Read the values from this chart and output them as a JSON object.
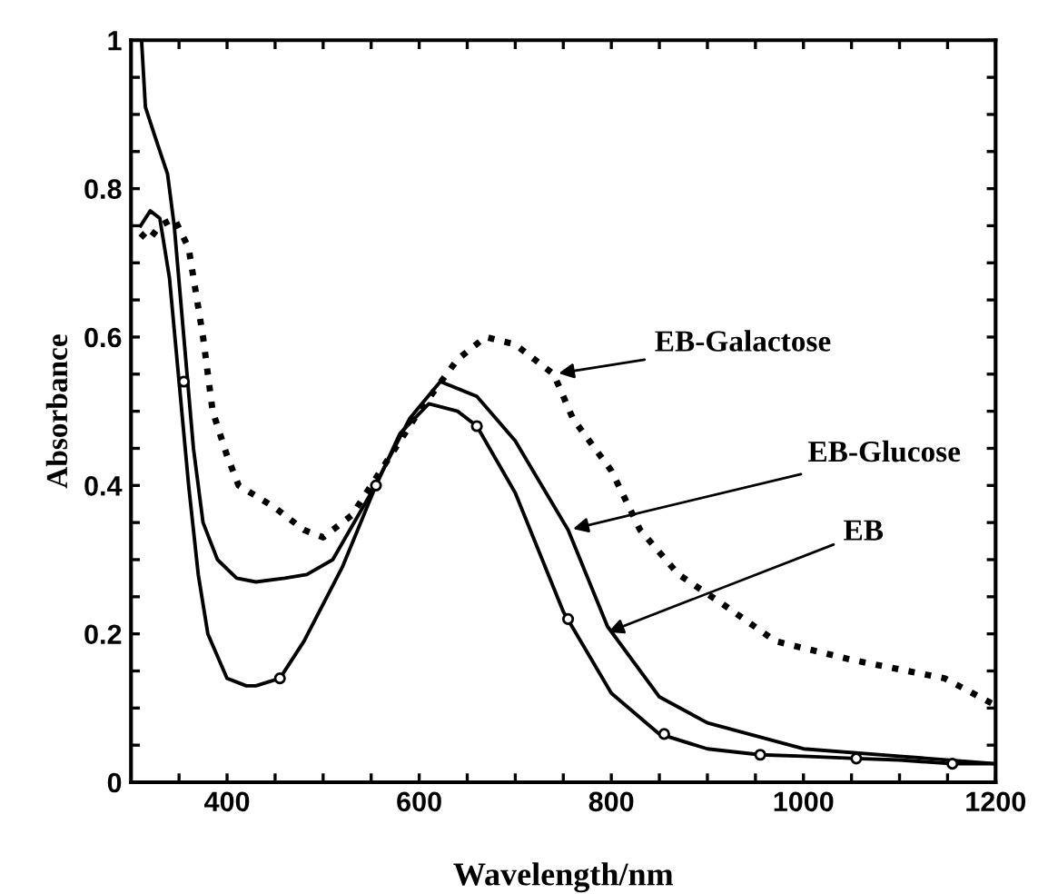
{
  "chart_data": {
    "type": "line",
    "xlabel": "Wavelength/nm",
    "ylabel": "Absorbance",
    "xlim": [
      300,
      1200
    ],
    "ylim": [
      0,
      1
    ],
    "xticks": [
      {
        "value": 350,
        "label": null
      },
      400,
      {
        "value": 450,
        "label": null
      },
      {
        "value": 500,
        "label": null
      },
      {
        "value": 550,
        "label": null
      },
      600,
      {
        "value": 650,
        "label": null
      },
      {
        "value": 700,
        "label": null
      },
      {
        "value": 750,
        "label": null
      },
      800,
      {
        "value": 850,
        "label": null
      },
      {
        "value": 900,
        "label": null
      },
      {
        "value": 950,
        "label": null
      },
      1000,
      {
        "value": 1050,
        "label": null
      },
      {
        "value": 1100,
        "label": null
      },
      {
        "value": 1150,
        "label": null
      },
      1200
    ],
    "yticks": [
      0,
      {
        "value": 0.05,
        "label": null
      },
      {
        "value": 0.1,
        "label": null
      },
      {
        "value": 0.15,
        "label": null
      },
      0.2,
      {
        "value": 0.25,
        "label": null
      },
      {
        "value": 0.3,
        "label": null
      },
      {
        "value": 0.35,
        "label": null
      },
      0.4,
      {
        "value": 0.45,
        "label": null
      },
      {
        "value": 0.5,
        "label": null
      },
      {
        "value": 0.55,
        "label": null
      },
      0.6,
      {
        "value": 0.65,
        "label": null
      },
      {
        "value": 0.7,
        "label": null
      },
      {
        "value": 0.75,
        "label": null
      },
      0.8,
      {
        "value": 0.85,
        "label": null
      },
      {
        "value": 0.9,
        "label": null
      },
      {
        "value": 0.95,
        "label": null
      },
      1
    ],
    "grid": false,
    "legend": false,
    "marker": "none",
    "series": [
      {
        "color": "#000000",
        "line_style": "solid",
        "x": [
          310,
          320,
          330,
          340,
          350,
          360,
          370,
          380,
          400,
          420,
          430,
          455,
          480,
          520,
          555,
          580,
          610,
          640,
          660,
          700,
          750,
          800,
          850,
          900,
          955,
          1000,
          1055,
          1100,
          1155,
          1200
        ],
        "values": [
          0.75,
          0.77,
          0.76,
          0.68,
          0.54,
          0.4,
          0.28,
          0.2,
          0.14,
          0.13,
          0.13,
          0.14,
          0.19,
          0.29,
          0.4,
          0.47,
          0.51,
          0.5,
          0.48,
          0.39,
          0.23,
          0.12,
          0.065,
          0.045,
          0.037,
          0.035,
          0.032,
          0.03,
          0.025,
          0.025
        ]
      },
      {
        "color": "#000000",
        "line_style": "solid",
        "x": [
          311,
          315,
          325,
          338,
          345,
          355,
          365,
          375,
          390,
          410,
          430,
          460,
          483,
          510,
          550,
          590,
          622,
          660,
          700,
          755,
          796,
          850,
          900,
          1000,
          1100,
          1200
        ],
        "values": [
          1.0,
          0.91,
          0.87,
          0.82,
          0.75,
          0.6,
          0.45,
          0.35,
          0.3,
          0.275,
          0.27,
          0.275,
          0.28,
          0.3,
          0.39,
          0.49,
          0.54,
          0.52,
          0.46,
          0.34,
          0.21,
          0.115,
          0.08,
          0.045,
          0.035,
          0.025
        ]
      },
      {
        "color": "#000000",
        "line_style": "dotted",
        "x": [
          310,
          318,
          330,
          345,
          360,
          375,
          385,
          400,
          412,
          450,
          480,
          500,
          530,
          560,
          600,
          640,
          669,
          700,
          740,
          760,
          800,
          830,
          870,
          916,
          971,
          1050,
          1147,
          1198
        ],
        "values": [
          0.74,
          0.73,
          0.75,
          0.76,
          0.72,
          0.6,
          0.5,
          0.44,
          0.4,
          0.37,
          0.34,
          0.33,
          0.36,
          0.42,
          0.5,
          0.57,
          0.6,
          0.59,
          0.55,
          0.49,
          0.42,
          0.34,
          0.28,
          0.24,
          0.19,
          0.165,
          0.14,
          0.105
        ]
      },
      {
        "type": "scatter",
        "marker": "circle",
        "color": "#000000",
        "x": [
          355,
          455,
          555,
          660,
          755,
          855,
          955,
          1055,
          1155
        ],
        "values": [
          0.54,
          0.14,
          0.4,
          0.48,
          0.22,
          0.065,
          0.037,
          0.032,
          0.025
        ]
      }
    ],
    "annotations": [
      {
        "text": "EB-Galactose",
        "x": 740,
        "y": 0.55
      },
      {
        "text": "EB-Glucose",
        "x": 755,
        "y": 0.34
      },
      {
        "text": "EB",
        "x": 792,
        "y": 0.2
      }
    ]
  }
}
